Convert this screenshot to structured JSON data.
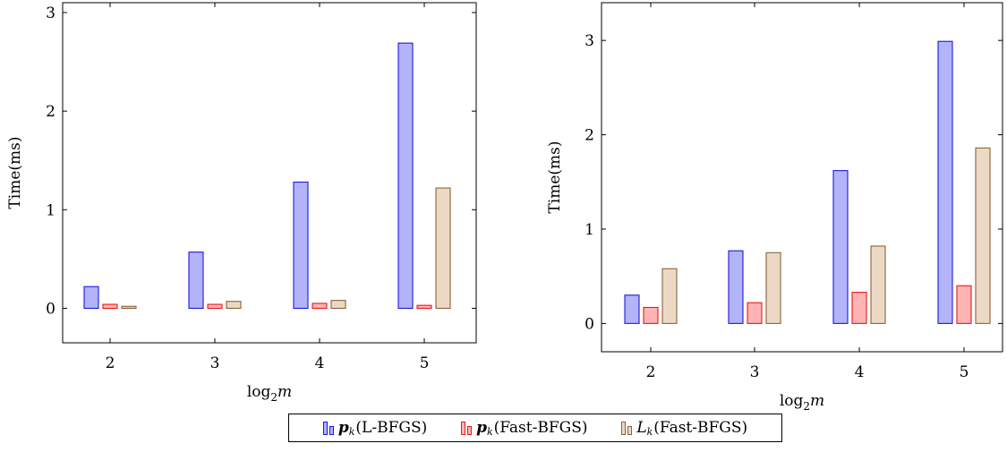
{
  "chart_data": [
    {
      "type": "bar",
      "categories": [
        "2",
        "3",
        "4",
        "5"
      ],
      "xlabel_base": "log",
      "xlabel_sub": "2",
      "xlabel_var": "m",
      "ylabel": "Time(ms)",
      "ylim": [
        -0.35,
        3.1
      ],
      "yticks": [
        0,
        1,
        2,
        3
      ],
      "grid": false,
      "series": [
        {
          "name": "p_k(L-BFGS)",
          "values": [
            0.22,
            0.57,
            1.28,
            2.69
          ]
        },
        {
          "name": "p_k(Fast-BFGS)",
          "values": [
            0.04,
            0.04,
            0.05,
            0.03
          ]
        },
        {
          "name": "L_k(Fast-BFGS)",
          "values": [
            0.02,
            0.07,
            0.08,
            1.22
          ]
        }
      ]
    },
    {
      "type": "bar",
      "categories": [
        "2",
        "3",
        "4",
        "5"
      ],
      "xlabel_base": "log",
      "xlabel_sub": "2",
      "xlabel_var": "m",
      "ylabel": "Time(ms)",
      "ylim": [
        -0.3,
        3.4
      ],
      "yticks": [
        0,
        1,
        2,
        3
      ],
      "grid": false,
      "series": [
        {
          "name": "p_k(L-BFGS)",
          "values": [
            0.3,
            0.77,
            1.62,
            2.99
          ]
        },
        {
          "name": "p_k(Fast-BFGS)",
          "values": [
            0.17,
            0.22,
            0.33,
            0.4
          ]
        },
        {
          "name": "L_k(Fast-BFGS)",
          "values": [
            0.58,
            0.75,
            0.82,
            1.86
          ]
        }
      ]
    }
  ],
  "legend": {
    "items": [
      {
        "symbol": "p",
        "sub": "k",
        "bold": true,
        "text": "(L-BFGS)",
        "fill": "#b3b3f7",
        "stroke": "#1a1ae6"
      },
      {
        "symbol": "p",
        "sub": "k",
        "bold": true,
        "text": "(Fast-BFGS)",
        "fill": "#ffb3b3",
        "stroke": "#e61a1a"
      },
      {
        "symbol": "L",
        "sub": "k",
        "bold": false,
        "text": "(Fast-BFGS)",
        "fill": "#ecd9c5",
        "stroke": "#8c6239"
      }
    ]
  }
}
